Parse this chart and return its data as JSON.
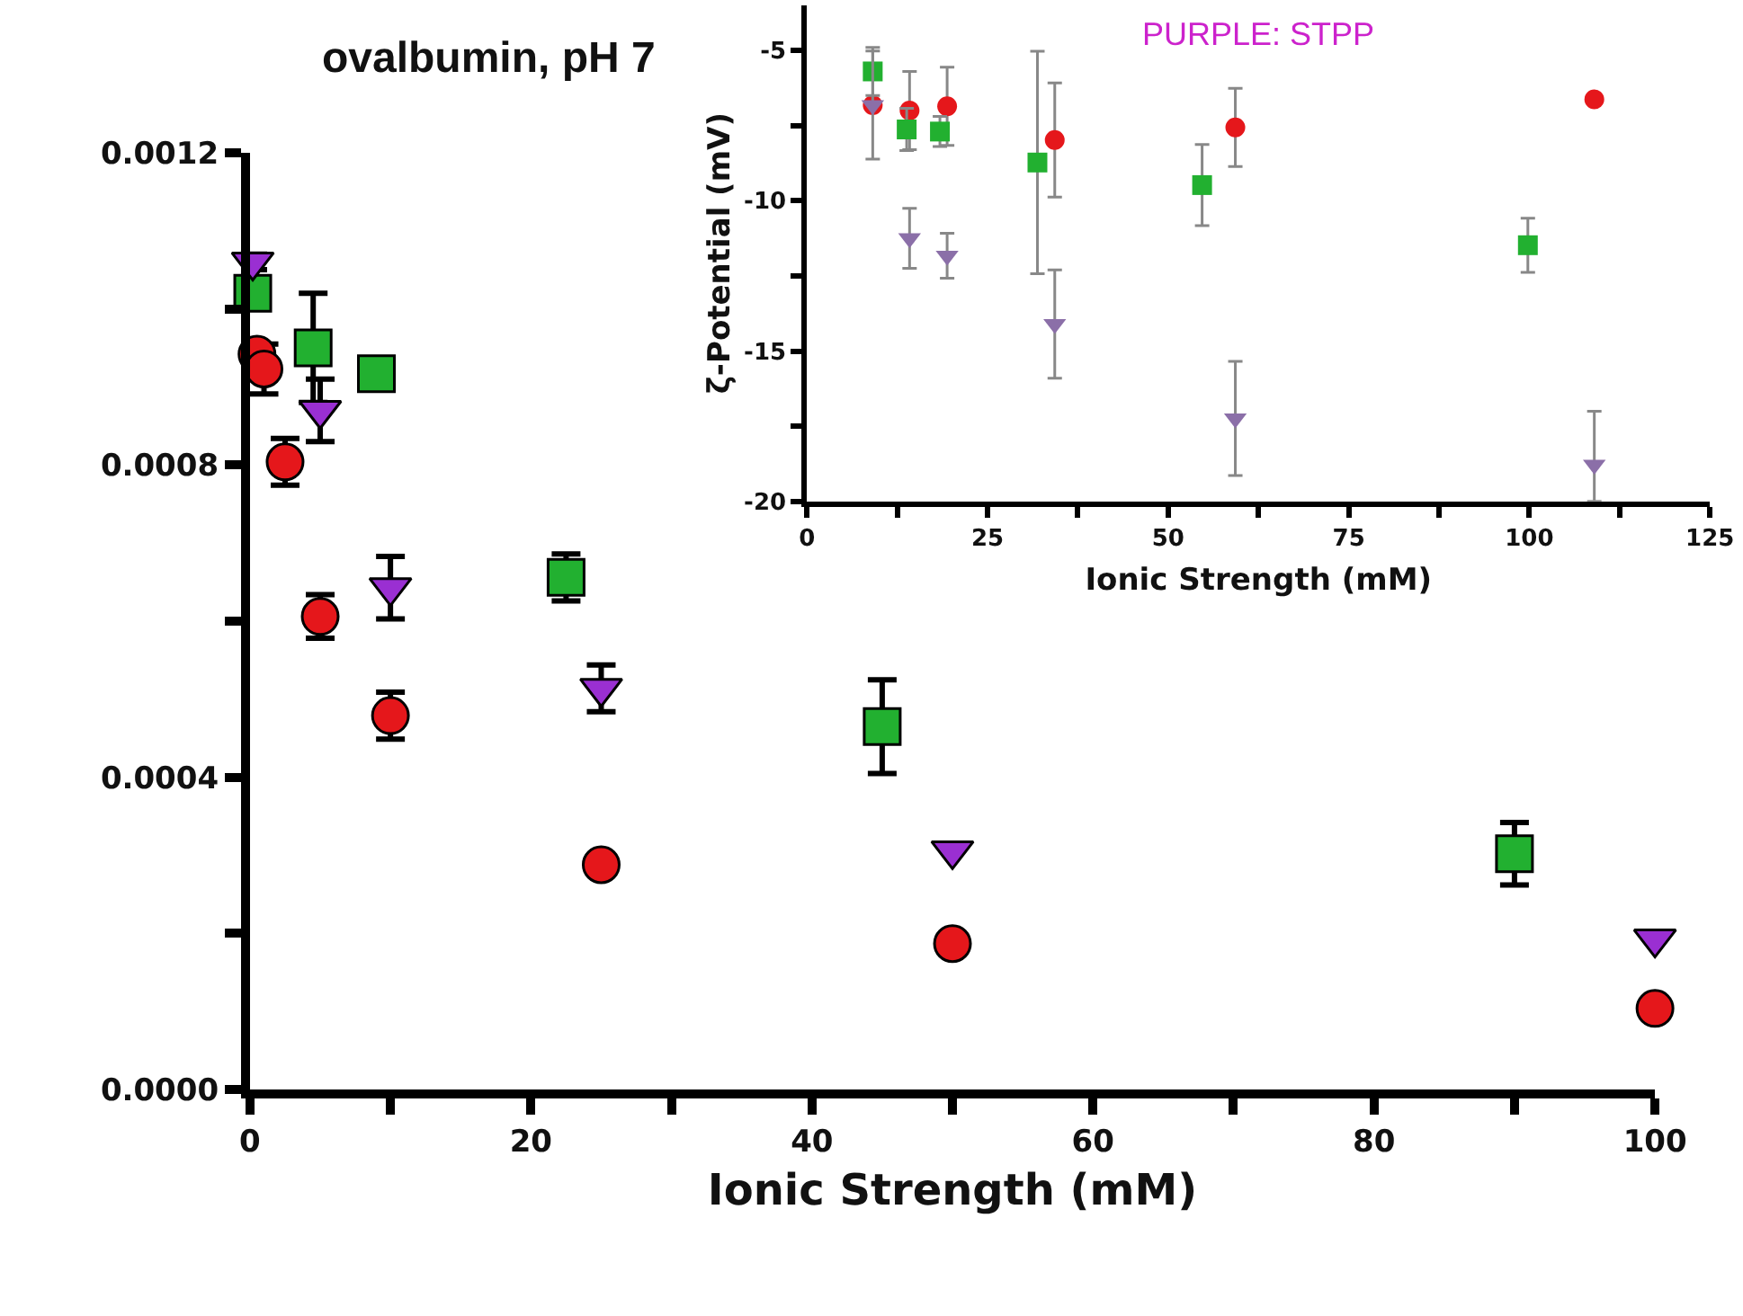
{
  "chart_data": [
    {
      "type": "scatter",
      "title": "ovalbumin, pH 7",
      "xlabel": "Ionic Strength (mM)",
      "xlim": [
        0,
        100
      ],
      "xticks": [
        0,
        {
          "value": 10,
          "label": null
        },
        20,
        {
          "value": 30,
          "label": null
        },
        40,
        {
          "value": 50,
          "label": null
        },
        60,
        {
          "value": 70,
          "label": null
        },
        80,
        {
          "value": 90,
          "label": null
        },
        100
      ],
      "ylim": [
        0,
        0.0012
      ],
      "yticks": [
        {
          "value": 0,
          "label": "0.0000"
        },
        {
          "value": 0.0002,
          "label": null
        },
        {
          "value": 0.0004,
          "label": "0.0004"
        },
        {
          "value": 0.0006,
          "label": null
        },
        {
          "value": 0.0008,
          "label": "0.0008"
        },
        {
          "value": 0.001,
          "label": null
        },
        {
          "value": 0.0012,
          "label": "0.0012"
        }
      ],
      "series": [
        {
          "color": "#22b030",
          "marker": "square",
          "x": [
            0.2,
            4.5,
            9,
            22.5,
            45,
            90
          ],
          "values": [
            0.00102,
            0.00095,
            0.000917,
            0.000656,
            0.000465,
            0.000302
          ],
          "errors": [
            null,
            7e-05,
            null,
            3e-05,
            6e-05,
            4e-05
          ]
        },
        {
          "color": "#9a2fd2",
          "marker": "triangle",
          "x": [
            0.2,
            5,
            10,
            25,
            50,
            100
          ],
          "values": [
            0.00106,
            0.00087,
            0.000643,
            0.000514,
            0.000306,
            0.000193
          ],
          "errors": [
            1e-05,
            4e-05,
            4e-05,
            3e-05,
            null,
            null
          ]
        },
        {
          "color": "#e5171b",
          "marker": "circle",
          "x": [
            0.5,
            1,
            2.5,
            5,
            10,
            25,
            50,
            100
          ],
          "values": [
            0.000942,
            0.000923,
            0.000804,
            0.000606,
            0.000479,
            0.000288,
            0.000187,
            0.000104
          ],
          "errors": [
            null,
            3.2e-05,
            3e-05,
            2.8e-05,
            3e-05,
            null,
            null,
            null
          ]
        }
      ]
    },
    {
      "type": "scatter",
      "xlabel": "Ionic Strength (mM)",
      "ylabel": "ζ-Potential (mV)",
      "xlim": [
        0,
        125
      ],
      "xticks": [
        0,
        {
          "value": 12.5,
          "label": null
        },
        25,
        {
          "value": 37.5,
          "label": null
        },
        50,
        {
          "value": 62.5,
          "label": null
        },
        75,
        {
          "value": 87.5,
          "label": null
        },
        100,
        {
          "value": 112.5,
          "label": null
        },
        125
      ],
      "ylim": [
        -20,
        -3.5
      ],
      "yticks": [
        -20,
        {
          "value": -17.5,
          "label": null
        },
        -15,
        {
          "value": -12.5,
          "label": null
        },
        -10,
        {
          "value": -7.5,
          "label": null
        },
        -5
      ],
      "annotations": [
        "PURPLE: STPP"
      ],
      "series": [
        {
          "color": "#e5171b",
          "marker": "circle",
          "x": [
            9.1,
            14.2,
            19.4,
            34.3,
            59.3,
            109
          ],
          "values": [
            -6.82,
            -7.0,
            -6.86,
            -7.98,
            -7.56,
            -6.63
          ],
          "errors": [
            null,
            1.3,
            1.3,
            1.9,
            1.3,
            null
          ]
        },
        {
          "color": "#22b030",
          "marker": "square",
          "x": [
            9.1,
            13.8,
            18.4,
            31.9,
            54.7,
            99.8
          ],
          "values": [
            -5.7,
            -7.63,
            -7.7,
            -8.73,
            -9.48,
            -11.48
          ],
          "errors": [
            0.8,
            0.7,
            0.5,
            3.7,
            1.35,
            0.9
          ]
        },
        {
          "color": "#8b6fa8",
          "marker": "triangle",
          "x": [
            9.1,
            14.2,
            19.4,
            34.3,
            59.3,
            109
          ],
          "values": [
            -6.82,
            -11.25,
            -11.83,
            -14.1,
            -17.24,
            -18.78
          ],
          "errors": [
            1.8,
            1.0,
            0.75,
            1.8,
            1.9,
            [
              -20,
              -17.0
            ]
          ]
        }
      ]
    }
  ]
}
